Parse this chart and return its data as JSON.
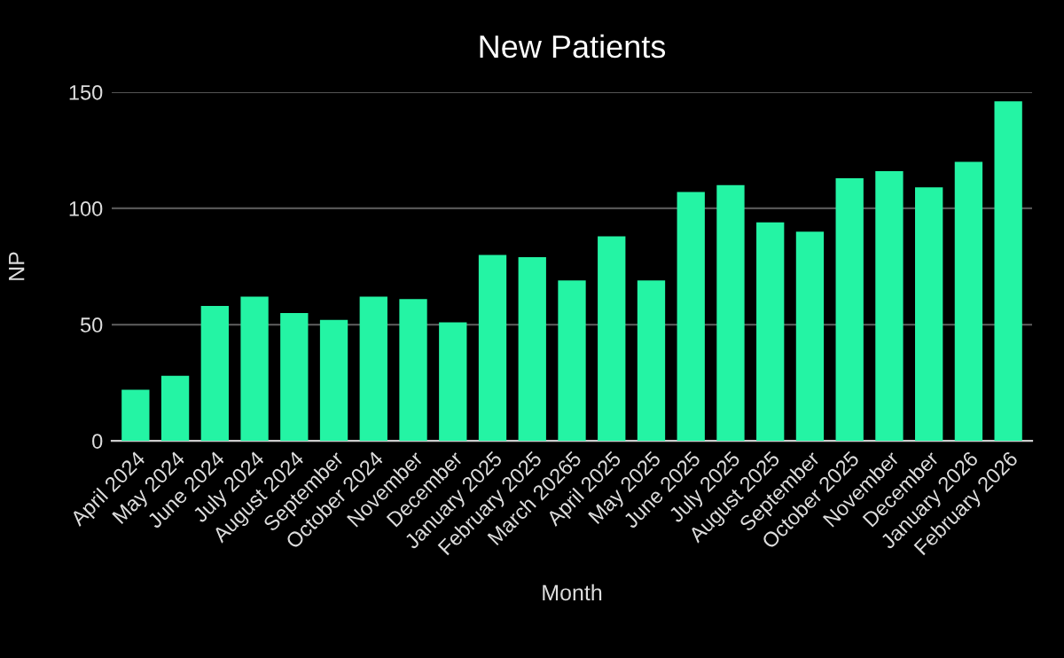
{
  "chart_data": {
    "type": "bar",
    "title": "New Patients",
    "xlabel": "Month",
    "ylabel": "NP",
    "categories": [
      "April 2024",
      "May 2024",
      "June 2024",
      "July 2024",
      "August 2024",
      "September",
      "October 2024",
      "November",
      "December",
      "January 2025",
      "February 2025",
      "March 20265",
      "April 2025",
      "May 2025",
      "June 2025",
      "July 2025",
      "August 2025",
      "September",
      "October 2025",
      "November",
      "December",
      "January 2026",
      "February 2026"
    ],
    "values": [
      22,
      28,
      58,
      62,
      55,
      52,
      62,
      61,
      51,
      80,
      79,
      69,
      88,
      69,
      107,
      110,
      94,
      90,
      113,
      116,
      109,
      120,
      146
    ],
    "color": "#24f4a4",
    "ylim": [
      0,
      150
    ],
    "yticks": [
      0,
      50,
      100,
      150
    ],
    "grid": "y"
  }
}
